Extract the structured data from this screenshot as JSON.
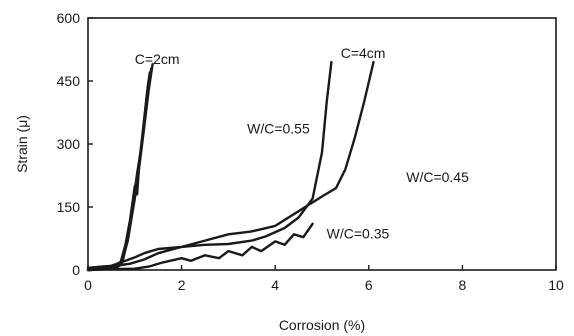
{
  "chart_data": {
    "type": "line",
    "xlabel": "Corrosion (%)",
    "ylabel": "Strain (μ)",
    "xlim": [
      0,
      10
    ],
    "ylim": [
      0,
      600
    ],
    "x_ticks": [
      0,
      2,
      4,
      6,
      8,
      10
    ],
    "y_ticks": [
      0,
      150,
      300,
      450,
      600
    ],
    "grid": false,
    "legend": "none",
    "annotations": [
      {
        "text": "C=2cm",
        "x": 1.0,
        "y": 490
      },
      {
        "text": "C=4cm",
        "x": 5.4,
        "y": 505
      },
      {
        "text": "W/C=0.55",
        "x": 3.4,
        "y": 325
      },
      {
        "text": "W/C=0.45",
        "x": 6.8,
        "y": 210
      },
      {
        "text": "W/C=0.35",
        "x": 5.1,
        "y": 75
      }
    ],
    "series": [
      {
        "points": [
          [
            0,
            0
          ],
          [
            0.3,
            3
          ],
          [
            0.55,
            8
          ],
          [
            0.7,
            20
          ],
          [
            0.8,
            60
          ],
          [
            0.9,
            120
          ],
          [
            1.0,
            200
          ],
          [
            1.05,
            180
          ],
          [
            1.1,
            260
          ],
          [
            1.2,
            360
          ],
          [
            1.28,
            440
          ],
          [
            1.32,
            470
          ]
        ]
      },
      {
        "points": [
          [
            0,
            0
          ],
          [
            0.35,
            2
          ],
          [
            0.6,
            5
          ],
          [
            0.75,
            25
          ],
          [
            0.85,
            80
          ],
          [
            0.95,
            150
          ],
          [
            1.05,
            230
          ],
          [
            1.15,
            300
          ],
          [
            1.25,
            410
          ],
          [
            1.35,
            480
          ]
        ]
      },
      {
        "points": [
          [
            0,
            0
          ],
          [
            0.4,
            2
          ],
          [
            0.6,
            4
          ],
          [
            0.72,
            15
          ],
          [
            0.85,
            70
          ],
          [
            1.0,
            170
          ],
          [
            1.1,
            250
          ],
          [
            1.2,
            340
          ],
          [
            1.3,
            430
          ],
          [
            1.38,
            490
          ]
        ]
      },
      {
        "points": [
          [
            0,
            5
          ],
          [
            0.3,
            8
          ],
          [
            0.6,
            10
          ],
          [
            0.9,
            15
          ],
          [
            1.2,
            25
          ],
          [
            1.5,
            40
          ],
          [
            2.0,
            55
          ],
          [
            2.5,
            60
          ],
          [
            3.0,
            62
          ],
          [
            3.5,
            70
          ],
          [
            3.8,
            80
          ],
          [
            4.2,
            100
          ],
          [
            4.5,
            125
          ],
          [
            4.8,
            170
          ],
          [
            5.0,
            280
          ],
          [
            5.1,
            400
          ],
          [
            5.2,
            495
          ]
        ]
      },
      {
        "points": [
          [
            0,
            5
          ],
          [
            0.5,
            10
          ],
          [
            1.0,
            30
          ],
          [
            1.2,
            40
          ],
          [
            1.5,
            50
          ],
          [
            2.0,
            55
          ],
          [
            2.5,
            70
          ],
          [
            3.0,
            85
          ],
          [
            3.5,
            92
          ],
          [
            4.0,
            105
          ],
          [
            4.5,
            140
          ],
          [
            5.0,
            175
          ],
          [
            5.3,
            195
          ],
          [
            5.5,
            240
          ],
          [
            5.7,
            315
          ],
          [
            5.9,
            400
          ],
          [
            6.1,
            495
          ]
        ]
      },
      {
        "points": [
          [
            0,
            0
          ],
          [
            0.5,
            2
          ],
          [
            1.0,
            3
          ],
          [
            1.3,
            8
          ],
          [
            1.6,
            18
          ],
          [
            2.0,
            28
          ],
          [
            2.2,
            22
          ],
          [
            2.5,
            35
          ],
          [
            2.8,
            28
          ],
          [
            3.0,
            45
          ],
          [
            3.3,
            35
          ],
          [
            3.5,
            55
          ],
          [
            3.7,
            45
          ],
          [
            4.0,
            68
          ],
          [
            4.2,
            60
          ],
          [
            4.4,
            85
          ],
          [
            4.6,
            78
          ],
          [
            4.8,
            110
          ]
        ]
      }
    ]
  }
}
